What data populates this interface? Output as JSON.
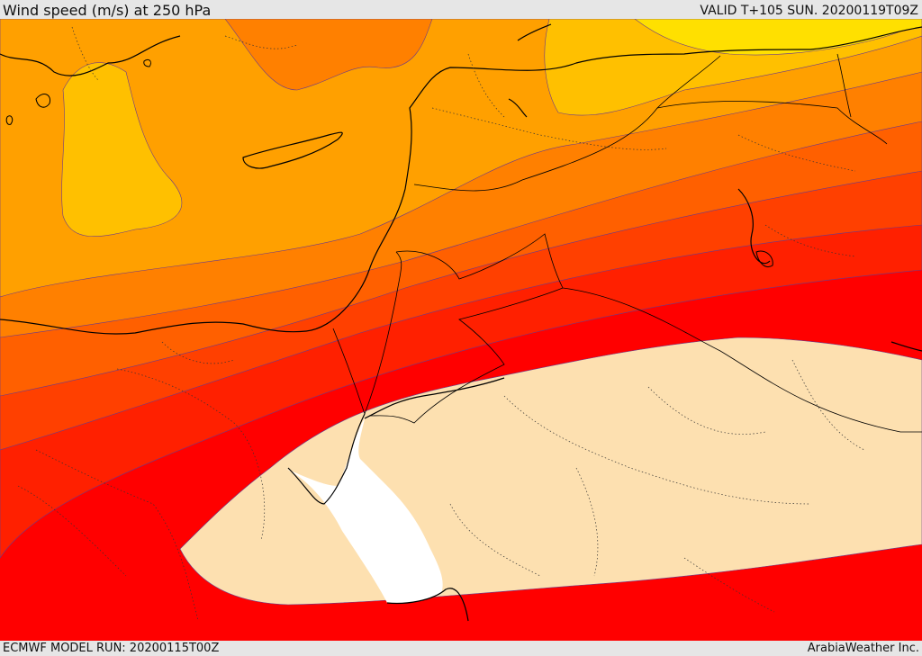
{
  "header": {
    "title": "Wind speed (m/s) at 250 hPa",
    "valid": "VALID T+105 SUN. 20200119T09Z"
  },
  "footer": {
    "model_run": "ECMWF MODEL RUN: 20200115T00Z",
    "credit": "ArabiaWeather Inc."
  },
  "map": {
    "region": "Eastern Mediterranean, Egypt, Levant, Red Sea and northern Arabia",
    "field": "wind speed at 250 hPa",
    "shading_colors": [
      "#ffe000",
      "#ffc000",
      "#ffa000",
      "#ff8000",
      "#ff6000",
      "#ff4000",
      "#ff2000",
      "#ff0000",
      "#fde0b0"
    ],
    "sea_color": "#ffffff"
  }
}
